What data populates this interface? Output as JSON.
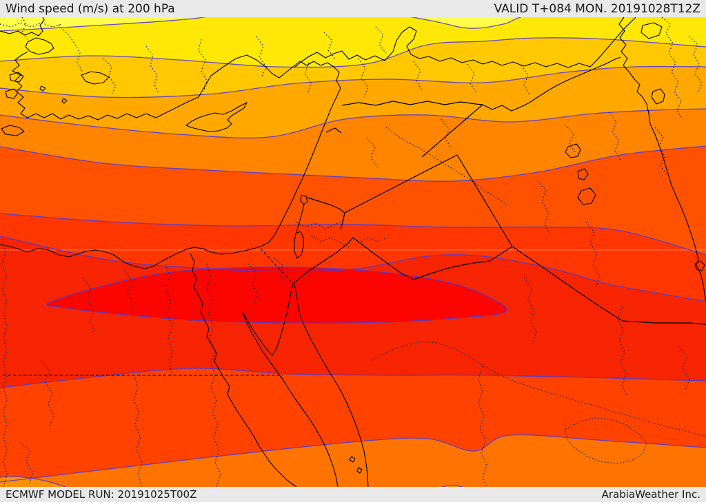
{
  "header": {
    "title": "Wind speed (m/s) at 200 hPa",
    "valid": "VALID T+084 MON. 20191028T12Z"
  },
  "footer": {
    "model_run": "ECMWF MODEL RUN: 20191025T00Z",
    "credit": "ArabiaWeather Inc."
  },
  "map": {
    "variable": "Wind speed (m/s)",
    "level": "200 hPa",
    "region": "Eastern Mediterranean / Middle East / North Africa",
    "style": {
      "bar_background": "#e9e9e9",
      "bar_text": "#1a1a1a",
      "contour_line": "#5338d2",
      "coastline": "#000000",
      "country_border": "#000000",
      "admin_boundary": "#1c1c1c",
      "faint_graticule": "#ffb3a0"
    },
    "jet_core_color": "#fc0400",
    "speed_bands_north_to_south": [
      {
        "name": "band-01-pale-yellow",
        "color": "#fffc4a"
      },
      {
        "name": "band-02-yellow",
        "color": "#ffe805"
      },
      {
        "name": "band-03-golden-amber",
        "color": "#ffc800"
      },
      {
        "name": "band-04-orange",
        "color": "#ffa800"
      },
      {
        "name": "band-05-deep-orange",
        "color": "#ff8400"
      },
      {
        "name": "band-06-orange-red",
        "color": "#ff5200"
      },
      {
        "name": "band-07-red-orange",
        "color": "#ff3600"
      },
      {
        "name": "band-08-red",
        "color": "#f62400"
      },
      {
        "name": "band-09-red-orange-south",
        "color": "#ff4200"
      },
      {
        "name": "band-10-orange-south",
        "color": "#ff7400"
      },
      {
        "name": "band-11-deep-orange-south",
        "color": "#ff9000"
      }
    ]
  }
}
